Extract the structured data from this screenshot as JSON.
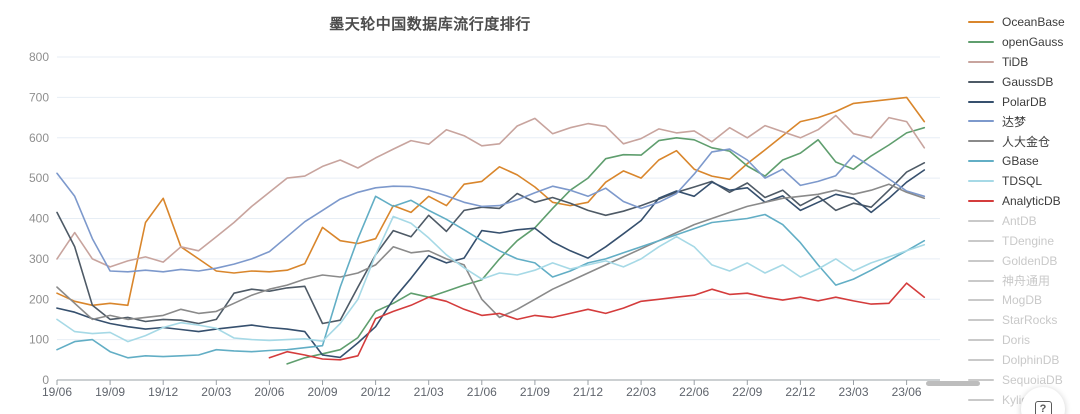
{
  "title": "墨天轮中国数据库流行度排行",
  "help_button": {
    "glyph": "?"
  },
  "legend": {
    "disabled_color": "#c9c9c9"
  },
  "axis_colors": {
    "grid": "#e7eef5",
    "axis_line": "#9aa0a6",
    "x_label": "#60656d",
    "y_label": "#8f8f8f"
  },
  "chart_data": {
    "type": "line",
    "title": "墨天轮中国数据库流行度排行",
    "xlabel": "",
    "ylabel": "",
    "ylim": [
      0,
      800
    ],
    "y_ticks": [
      0,
      100,
      200,
      300,
      400,
      500,
      600,
      700,
      800
    ],
    "grid": true,
    "legend_position": "right",
    "x_tick_labels": [
      "19/06",
      "19/09",
      "19/12",
      "20/03",
      "20/06",
      "20/09",
      "20/12",
      "21/03",
      "21/06",
      "21/09",
      "21/12",
      "22/03",
      "22/06",
      "22/09",
      "22/12",
      "23/03",
      "23/06"
    ],
    "x": [
      "19/06",
      "19/07",
      "19/08",
      "19/09",
      "19/10",
      "19/11",
      "19/12",
      "20/01",
      "20/02",
      "20/03",
      "20/04",
      "20/05",
      "20/06",
      "20/07",
      "20/08",
      "20/09",
      "20/10",
      "20/11",
      "20/12",
      "21/01",
      "21/02",
      "21/03",
      "21/04",
      "21/05",
      "21/06",
      "21/07",
      "21/08",
      "21/09",
      "21/10",
      "21/11",
      "21/12",
      "22/01",
      "22/02",
      "22/03",
      "22/04",
      "22/05",
      "22/06",
      "22/07",
      "22/08",
      "22/09",
      "22/10",
      "22/11",
      "22/12",
      "23/01",
      "23/02",
      "23/03",
      "23/04",
      "23/05",
      "23/06",
      "23/07"
    ],
    "series": [
      {
        "name": "OceanBase",
        "color": "#d9862c",
        "active": true,
        "values": [
          215,
          195,
          185,
          190,
          185,
          390,
          450,
          330,
          300,
          270,
          265,
          270,
          268,
          272,
          288,
          378,
          345,
          338,
          350,
          432,
          415,
          455,
          432,
          485,
          492,
          528,
          508,
          478,
          440,
          432,
          440,
          490,
          518,
          500,
          545,
          568,
          522,
          505,
          497,
          536,
          570,
          605,
          640,
          650,
          665,
          685,
          690,
          695,
          700,
          640
        ]
      },
      {
        "name": "openGauss",
        "color": "#5f9e6e",
        "active": true,
        "values": [
          null,
          null,
          null,
          null,
          null,
          null,
          null,
          null,
          null,
          null,
          null,
          null,
          null,
          40,
          55,
          65,
          75,
          105,
          170,
          190,
          215,
          205,
          220,
          235,
          248,
          300,
          345,
          377,
          425,
          470,
          500,
          548,
          558,
          557,
          593,
          600,
          595,
          575,
          567,
          530,
          505,
          545,
          562,
          595,
          540,
          522,
          555,
          582,
          612,
          625
        ]
      },
      {
        "name": "TiDB",
        "color": "#c8a49e",
        "active": true,
        "values": [
          300,
          365,
          300,
          280,
          295,
          305,
          292,
          330,
          320,
          355,
          390,
          430,
          465,
          500,
          505,
          529,
          545,
          525,
          550,
          572,
          593,
          584,
          620,
          605,
          580,
          585,
          629,
          648,
          610,
          625,
          635,
          628,
          585,
          598,
          622,
          612,
          617,
          590,
          625,
          600,
          630,
          615,
          600,
          620,
          655,
          610,
          600,
          650,
          640,
          575
        ]
      },
      {
        "name": "GaussDB",
        "color": "#4e5a66",
        "active": true,
        "values": [
          415,
          330,
          185,
          150,
          155,
          145,
          150,
          148,
          140,
          150,
          215,
          225,
          220,
          228,
          232,
          140,
          148,
          230,
          310,
          370,
          355,
          408,
          368,
          420,
          428,
          425,
          462,
          440,
          452,
          438,
          420,
          408,
          418,
          432,
          448,
          465,
          478,
          492,
          465,
          488,
          452,
          470,
          432,
          455,
          420,
          438,
          428,
          470,
          515,
          538
        ]
      },
      {
        "name": "PolarDB",
        "color": "#36506e",
        "active": true,
        "values": [
          178,
          168,
          152,
          140,
          132,
          126,
          130,
          125,
          120,
          126,
          131,
          136,
          130,
          126,
          120,
          62,
          56,
          92,
          132,
          200,
          252,
          308,
          290,
          302,
          370,
          364,
          372,
          376,
          342,
          320,
          302,
          330,
          362,
          395,
          450,
          468,
          455,
          490,
          470,
          476,
          440,
          456,
          420,
          440,
          460,
          450,
          415,
          450,
          490,
          520
        ]
      },
      {
        "name": "达梦",
        "color": "#7d99cc",
        "active": true,
        "values": [
          512,
          455,
          350,
          270,
          268,
          272,
          268,
          274,
          270,
          277,
          287,
          300,
          318,
          355,
          392,
          420,
          448,
          465,
          476,
          480,
          479,
          470,
          456,
          440,
          430,
          432,
          446,
          464,
          480,
          470,
          455,
          475,
          442,
          425,
          440,
          462,
          510,
          565,
          572,
          545,
          500,
          522,
          482,
          492,
          506,
          556,
          528,
          498,
          468,
          455
        ]
      },
      {
        "name": "人大金仓",
        "color": "#8a8a8a",
        "active": true,
        "values": [
          230,
          190,
          150,
          160,
          150,
          155,
          160,
          175,
          165,
          170,
          190,
          210,
          225,
          235,
          250,
          260,
          255,
          265,
          285,
          330,
          315,
          320,
          300,
          285,
          200,
          155,
          175,
          200,
          225,
          245,
          265,
          285,
          305,
          325,
          345,
          365,
          385,
          400,
          415,
          430,
          440,
          450,
          455,
          460,
          470,
          460,
          470,
          485,
          465,
          450
        ]
      },
      {
        "name": "GBase",
        "color": "#62aec5",
        "active": true,
        "values": [
          75,
          95,
          100,
          70,
          55,
          60,
          58,
          60,
          62,
          75,
          72,
          70,
          73,
          75,
          80,
          85,
          230,
          350,
          455,
          430,
          445,
          420,
          398,
          372,
          345,
          320,
          300,
          290,
          255,
          270,
          290,
          300,
          315,
          330,
          345,
          360,
          375,
          390,
          395,
          400,
          410,
          385,
          340,
          285,
          235,
          250,
          272,
          296,
          320,
          345
        ]
      },
      {
        "name": "TDSQL",
        "color": "#a6d9e6",
        "active": true,
        "values": [
          150,
          120,
          115,
          118,
          95,
          110,
          130,
          142,
          136,
          128,
          104,
          100,
          98,
          100,
          102,
          96,
          140,
          200,
          310,
          405,
          388,
          352,
          310,
          278,
          250,
          265,
          260,
          272,
          290,
          275,
          285,
          295,
          280,
          300,
          330,
          355,
          330,
          285,
          270,
          290,
          265,
          285,
          255,
          275,
          300,
          270,
          290,
          305,
          320,
          335
        ]
      },
      {
        "name": "AnalyticDB",
        "color": "#d43c3c",
        "active": true,
        "values": [
          null,
          null,
          null,
          null,
          null,
          null,
          null,
          null,
          null,
          null,
          null,
          null,
          55,
          70,
          62,
          52,
          50,
          60,
          152,
          170,
          185,
          205,
          195,
          175,
          160,
          165,
          150,
          160,
          155,
          165,
          175,
          165,
          178,
          195,
          200,
          205,
          210,
          225,
          212,
          215,
          205,
          198,
          205,
          196,
          205,
          196,
          188,
          190,
          240,
          205
        ]
      },
      {
        "name": "AntDB",
        "color": "#c9c9c9",
        "active": false,
        "values": []
      },
      {
        "name": "TDengine",
        "color": "#c9c9c9",
        "active": false,
        "values": []
      },
      {
        "name": "GoldenDB",
        "color": "#c9c9c9",
        "active": false,
        "values": []
      },
      {
        "name": "神舟通用",
        "color": "#c9c9c9",
        "active": false,
        "values": []
      },
      {
        "name": "MogDB",
        "color": "#c9c9c9",
        "active": false,
        "values": []
      },
      {
        "name": "StarRocks",
        "color": "#c9c9c9",
        "active": false,
        "values": []
      },
      {
        "name": "Doris",
        "color": "#c9c9c9",
        "active": false,
        "values": []
      },
      {
        "name": "DolphinDB",
        "color": "#c9c9c9",
        "active": false,
        "values": []
      },
      {
        "name": "SequoiaDB",
        "color": "#c9c9c9",
        "active": false,
        "values": []
      },
      {
        "name": "Kyligence",
        "color": "#c9c9c9",
        "active": false,
        "values": []
      }
    ]
  }
}
